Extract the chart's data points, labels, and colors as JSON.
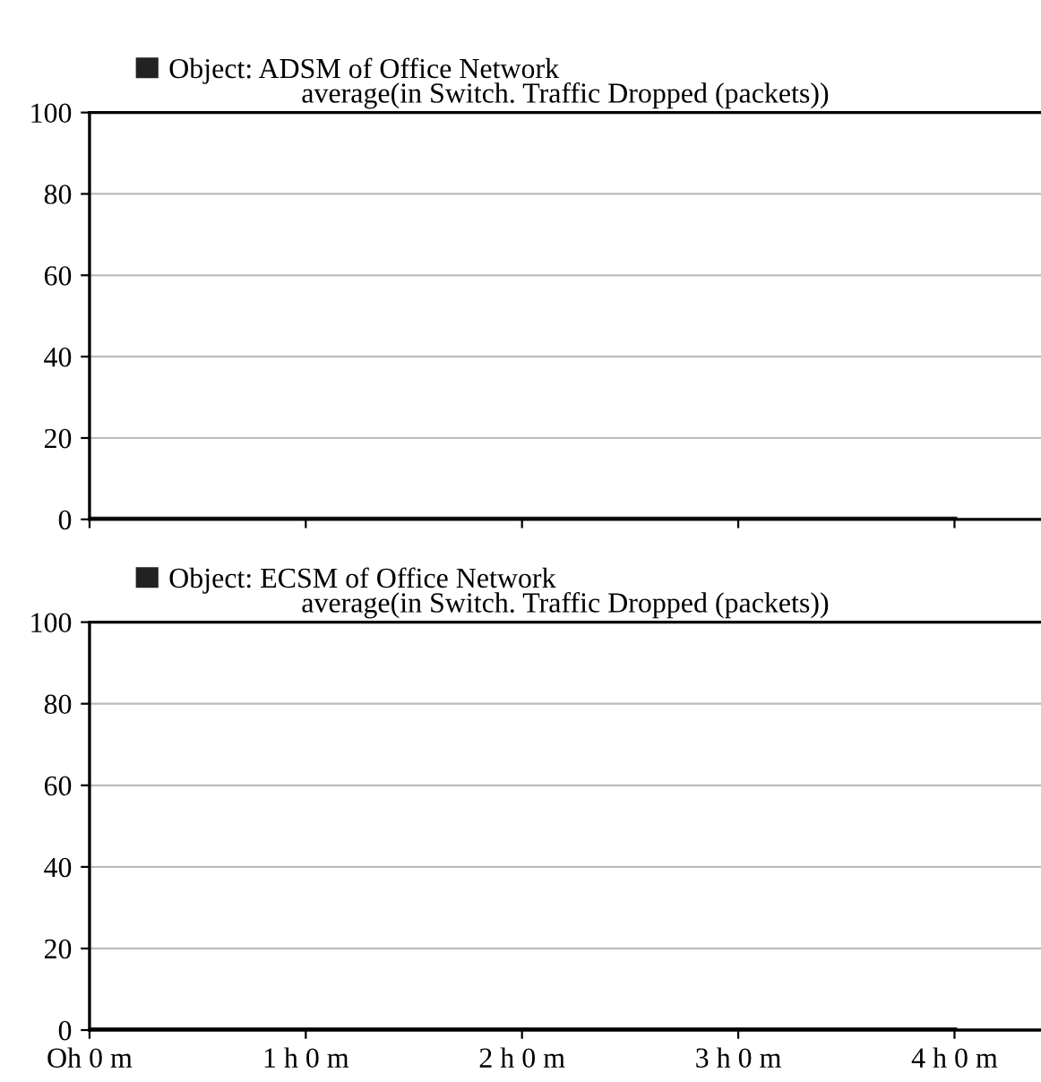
{
  "chart_data": [
    {
      "type": "line",
      "subtitle": "average(in Switch. Traffic Dropped (packets))",
      "categories": [
        null,
        null,
        null,
        null,
        null
      ],
      "series": [
        {
          "name": "Object: ADSM of Office Network",
          "color": "#222222",
          "values": [
            0,
            0,
            0,
            0,
            0
          ]
        }
      ],
      "ylim": [
        0,
        100
      ],
      "yticks": [
        0,
        20,
        40,
        60,
        80,
        100
      ],
      "grid": "y",
      "legend": "top left",
      "tick_labels": "y",
      "marker": "none",
      "line_style": "solid"
    },
    {
      "type": "line",
      "subtitle": "average(in Switch. Traffic Dropped (packets))",
      "categories": [
        "Oh 0 m",
        "1 h 0 m",
        "2 h 0 m",
        "3 h 0 m",
        "4 h 0 m"
      ],
      "series": [
        {
          "name": "Object: ECSM of Office Network",
          "color": "#222222",
          "values": [
            0,
            0,
            0,
            0,
            0
          ]
        }
      ],
      "ylim": [
        0,
        100
      ],
      "yticks": [
        0,
        20,
        40,
        60,
        80,
        100
      ],
      "grid": "y",
      "legend": "top left",
      "marker": "none",
      "line_style": "solid"
    }
  ]
}
